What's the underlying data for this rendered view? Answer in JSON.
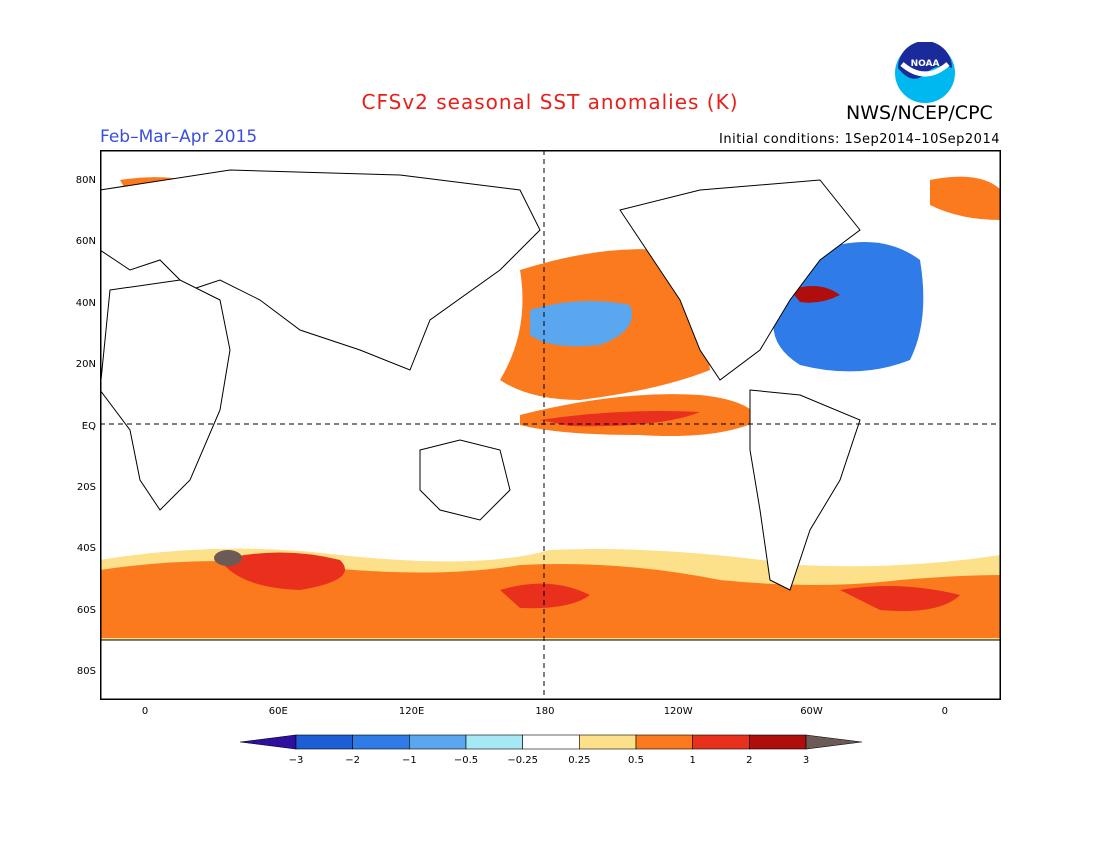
{
  "title": "CFSv2 seasonal SST anomalies (K)",
  "agency": "NWS/NCEP/CPC",
  "logo_text": "NOAA",
  "period": "Feb–Mar–Apr 2015",
  "initial_conditions": "Initial conditions: 1Sep2014–10Sep2014",
  "map": {
    "lon_ticks": [
      "0",
      "60E",
      "120E",
      "180",
      "120W",
      "60W",
      "0"
    ],
    "lat_ticks": [
      "80N",
      "60N",
      "40N",
      "20N",
      "EQ",
      "20S",
      "40S",
      "60S",
      "80S"
    ]
  },
  "colorbar": {
    "labels": [
      "−3",
      "−2",
      "−1",
      "−0.5",
      "−0.25",
      "0.25",
      "0.5",
      "1",
      "2",
      "3"
    ],
    "colors": [
      "#2d10a0",
      "#1d5ed6",
      "#2f7ce8",
      "#5aa6ef",
      "#a6e8f4",
      "#ffffff",
      "#fde08a",
      "#fc7a1e",
      "#e8301c",
      "#b00d0d",
      "#6b5a55"
    ]
  },
  "colors": {
    "title": "#e8201a",
    "period": "#3a4de0",
    "warm": "#fc7a1e",
    "cool": "#2f7ce8"
  }
}
